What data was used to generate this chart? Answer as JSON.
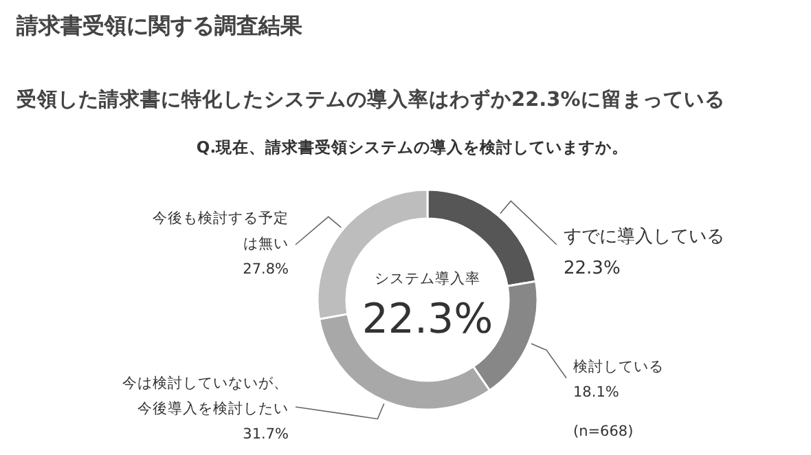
{
  "chart_data": {
    "type": "donut",
    "title": "請求書受領に関する調査結果",
    "subtitle": "受領した請求書に特化したシステムの導入率はわずか22.3%に留まっている",
    "categories": [
      "すでに導入している",
      "検討している",
      "今は検討していないが、今後導入を検討したい",
      "今後も検討する予定は無い"
    ],
    "values": [
      22.3,
      18.1,
      31.7,
      27.8
    ],
    "value_labels": [
      "22.3%",
      "18.1%",
      "31.7%",
      "27.8%"
    ],
    "colors": [
      "#565656",
      "#878787",
      "#a8a8a8",
      "#bdbdbd"
    ],
    "annotations": [
      "Q.現在、請求書受領システムの導入を検討していますか。",
      "システム導入率",
      "22.3%",
      "(n=668)"
    ]
  }
}
